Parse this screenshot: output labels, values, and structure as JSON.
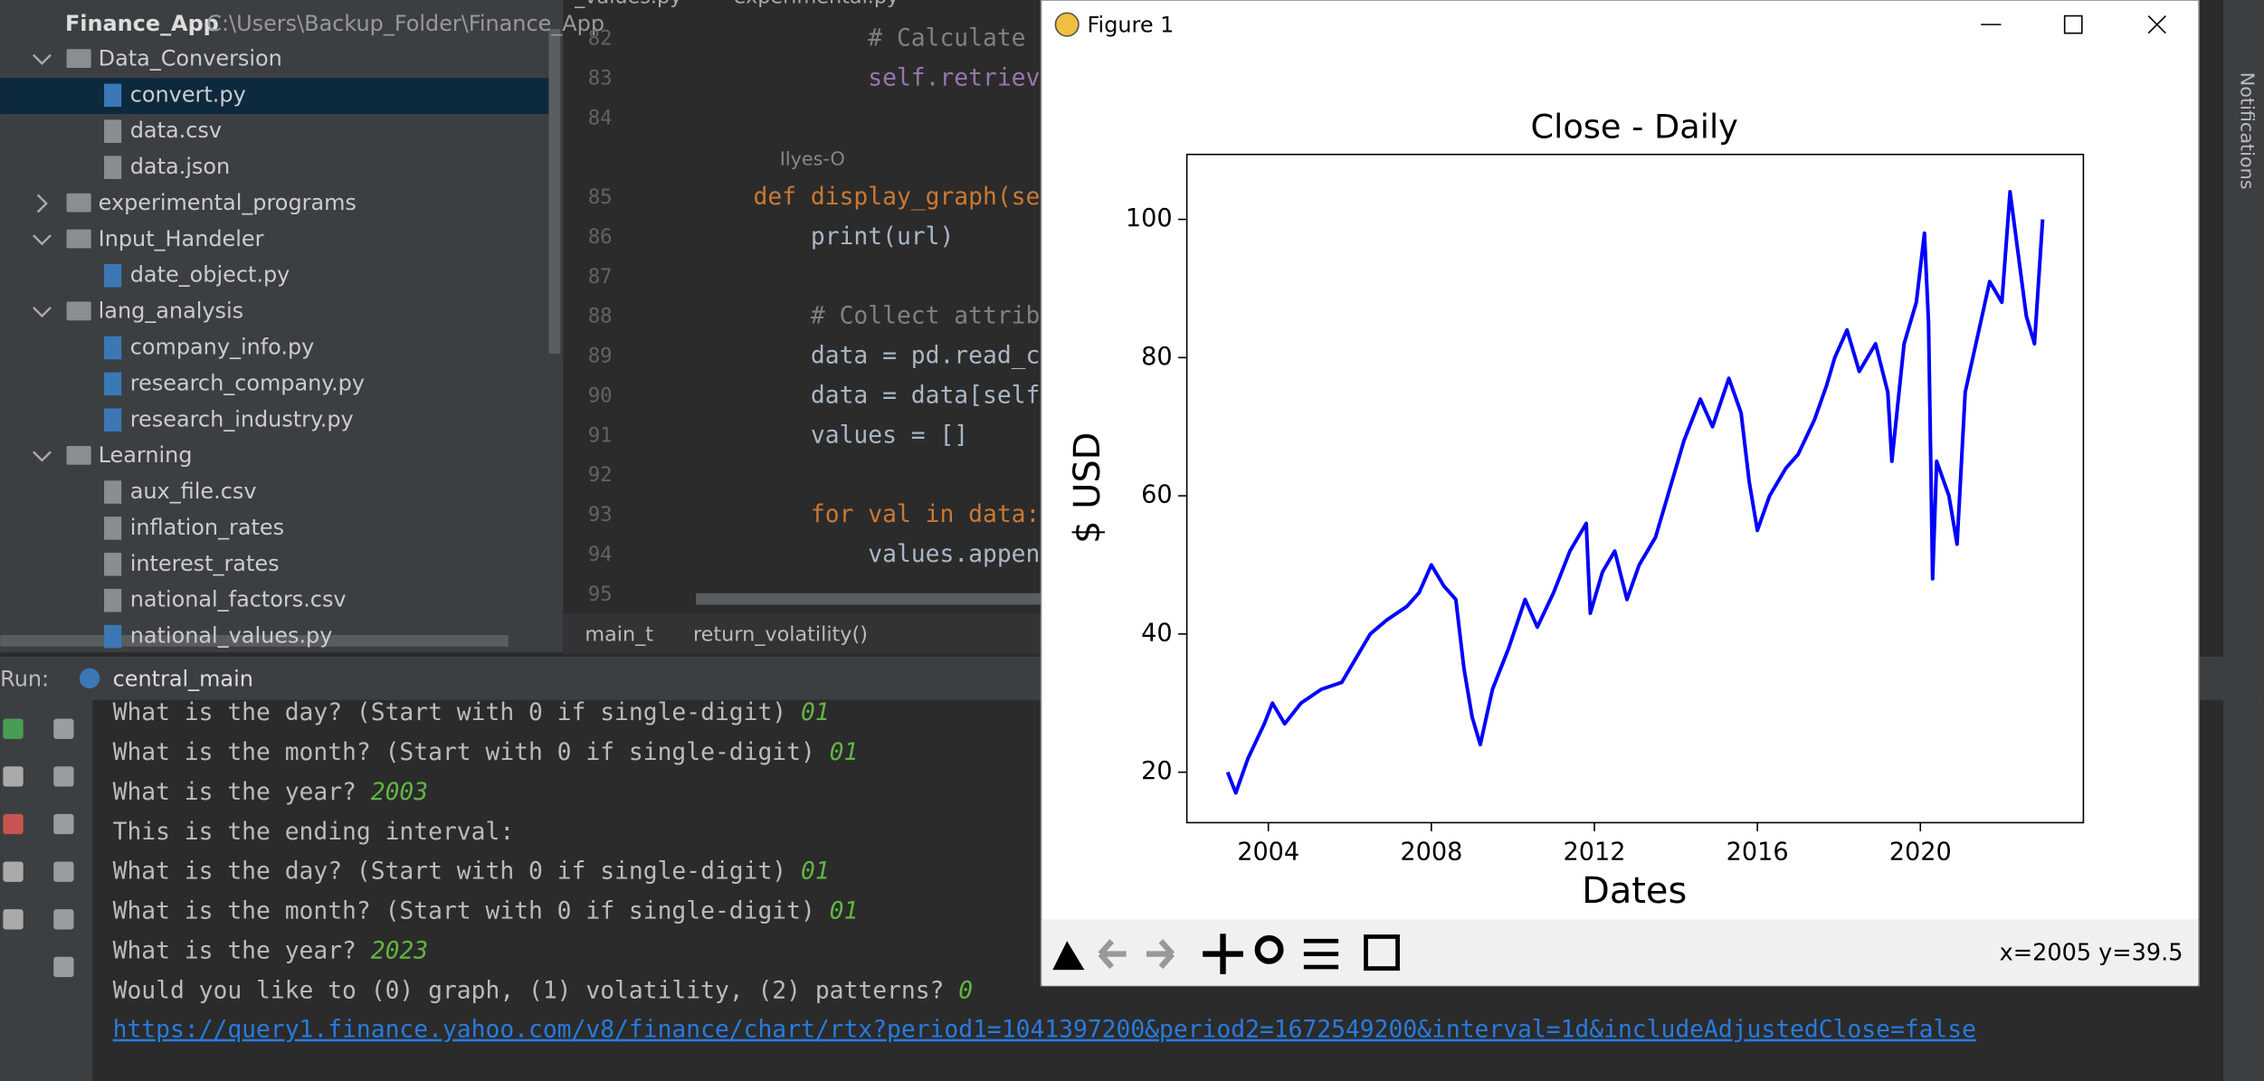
{
  "project": {
    "root": "Finance_App",
    "path": "C:\\Users\\Backup_Folder\\Finance_App",
    "tree": [
      {
        "name": "Data_Conversion",
        "children": [
          "convert.py",
          "data.csv",
          "data.json"
        ]
      },
      {
        "name": "experimental_programs",
        "children": []
      },
      {
        "name": "Input_Handeler",
        "children": [
          "date_object.py"
        ]
      },
      {
        "name": "lang_analysis",
        "children": [
          "company_info.py",
          "research_company.py",
          "research_industry.py"
        ]
      },
      {
        "name": "Learning",
        "children": [
          "aux_file.csv",
          "inflation_rates",
          "interest_rates",
          "national_factors.csv",
          "national_values.py"
        ]
      }
    ],
    "selected": "convert.py"
  },
  "editor": {
    "tabs": [
      "_values.py",
      "experimental.py"
    ],
    "lines": [
      {
        "n": 82,
        "code": "            # Calculate"
      },
      {
        "n": 83,
        "code": "            self.retriev"
      },
      {
        "n": 84
      },
      {
        "n": 85,
        "code": "    def display_graph(se"
      },
      {
        "n": 86,
        "code": "        print(url)"
      },
      {
        "n": 87
      },
      {
        "n": 88,
        "code": "        # Collect attrib"
      },
      {
        "n": 89,
        "code": "        data = pd.read_c"
      },
      {
        "n": 90,
        "code": "        data = data[self"
      },
      {
        "n": 91,
        "code": "        values = []"
      },
      {
        "n": 92
      },
      {
        "n": 93,
        "code": "        for val in data:"
      },
      {
        "n": 94,
        "code": "            values.appen"
      },
      {
        "n": 95
      }
    ],
    "author": "Ilyes-O",
    "breadcrumb": [
      "main_t",
      "return_volatility()"
    ]
  },
  "run": {
    "label": "Run:",
    "config": "central_main",
    "lines": [
      {
        "prompt": "What is the day? (Start with 0 if single-digit) ",
        "input": "01"
      },
      {
        "prompt": "What is the month? (Start with 0 if single-digit) ",
        "input": "01"
      },
      {
        "prompt": "What is the year? ",
        "input": "2003"
      },
      {
        "prompt": "This is the ending interval:"
      },
      {
        "prompt": "What is the day? (Start with 0 if single-digit) ",
        "input": "01"
      },
      {
        "prompt": "What is the month? (Start with 0 if single-digit) ",
        "input": "01"
      },
      {
        "prompt": "What is the year? ",
        "input": "2023"
      },
      {
        "prompt": "Would you like to (0) graph, (1) volatility, (2) patterns? ",
        "input": "0"
      }
    ],
    "url": "https://query1.finance.yahoo.com/v8/finance/chart/rtx?period1=1041397200&period2=1672549200&interval=1d&includeAdjustedClose=false"
  },
  "notifications": "Notifications",
  "figure": {
    "window_title": "Figure 1",
    "status": "x=2005 y=39.5"
  },
  "chart_data": {
    "type": "line",
    "title": "Close - Daily",
    "x_label": "Dates",
    "y_label": "$ USD",
    "color": "#0000ff",
    "x": [
      2003.0,
      2003.2,
      2003.5,
      2003.9,
      2004.1,
      2004.4,
      2004.8,
      2005.3,
      2005.8,
      2006.2,
      2006.5,
      2006.9,
      2007.4,
      2007.7,
      2008.0,
      2008.3,
      2008.6,
      2008.8,
      2009.0,
      2009.2,
      2009.5,
      2009.9,
      2010.3,
      2010.6,
      2011.0,
      2011.4,
      2011.8,
      2011.9,
      2012.2,
      2012.5,
      2012.8,
      2013.1,
      2013.5,
      2013.9,
      2014.2,
      2014.6,
      2014.9,
      2015.3,
      2015.6,
      2015.8,
      2016.0,
      2016.3,
      2016.7,
      2017.0,
      2017.4,
      2017.7,
      2017.9,
      2018.2,
      2018.5,
      2018.9,
      2019.2,
      2019.3,
      2019.6,
      2019.9,
      2020.1,
      2020.2,
      2020.3,
      2020.4,
      2020.7,
      2020.9,
      2021.1,
      2021.4,
      2021.7,
      2022.0,
      2022.2,
      2022.4,
      2022.6,
      2022.8,
      2023.0
    ],
    "values": [
      20,
      17,
      22,
      27,
      30,
      27,
      30,
      32,
      33,
      37,
      40,
      42,
      44,
      46,
      50,
      47,
      45,
      35,
      28,
      24,
      32,
      38,
      45,
      41,
      46,
      52,
      56,
      43,
      49,
      52,
      45,
      50,
      54,
      62,
      68,
      74,
      70,
      77,
      72,
      62,
      55,
      60,
      64,
      66,
      71,
      76,
      80,
      84,
      78,
      82,
      75,
      65,
      82,
      88,
      98,
      85,
      48,
      65,
      60,
      53,
      75,
      83,
      91,
      88,
      104,
      95,
      86,
      82,
      100
    ],
    "xlim": [
      2002.0,
      2024.0
    ],
    "xticks": [
      2004,
      2008,
      2012,
      2016,
      2020
    ],
    "ylim": [
      12.7,
      109.4
    ],
    "yticks": [
      20,
      40,
      60,
      80,
      100
    ]
  }
}
